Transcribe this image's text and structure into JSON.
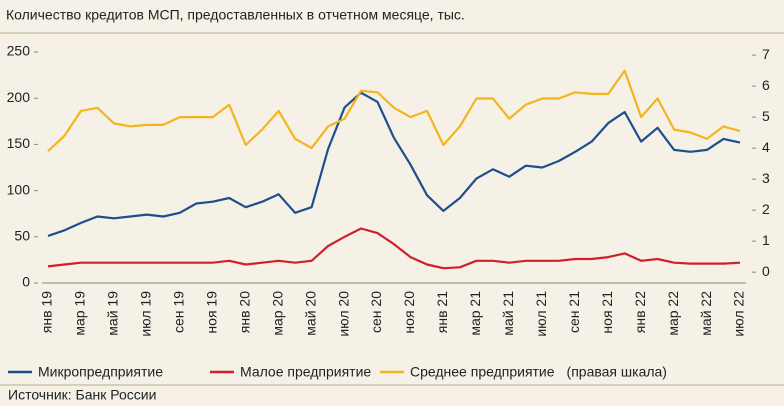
{
  "chart_data": {
    "type": "line",
    "title": "Количество кредитов МСП, предоставленных в отчетном месяце, тыс.",
    "source": "Источник: Банк России",
    "y2_note": "(правая шкала)",
    "categories": [
      "янв 19",
      null,
      "мар 19",
      null,
      "май 19",
      null,
      "июл 19",
      null,
      "сен 19",
      null,
      "ноя 19",
      null,
      "янв 20",
      null,
      "мар 20",
      null,
      "май 20",
      null,
      "июл 20",
      null,
      "сен 20",
      null,
      "ноя 20",
      null,
      "янв 21",
      null,
      "мар 21",
      null,
      "май 21",
      null,
      "июл 21",
      null,
      "сен 21",
      null,
      "ноя 21",
      null,
      "янв 22",
      null,
      "мар 22",
      null,
      "май 22",
      null,
      "июл 22"
    ],
    "series": [
      {
        "name": "Микропредприятие",
        "color": "#1f4e8c",
        "values": [
          51,
          57,
          65,
          72,
          70,
          72,
          74,
          72,
          76,
          86,
          88,
          92,
          82,
          88,
          96,
          76,
          82,
          145,
          190,
          206,
          196,
          157,
          128,
          95,
          78,
          92,
          113,
          123,
          115,
          127,
          125,
          132,
          142,
          153,
          173,
          185,
          153,
          168,
          144,
          142,
          144,
          156,
          152
        ]
      },
      {
        "name": "Малое предприятие",
        "color": "#d0202a",
        "values": [
          18,
          20,
          22,
          22,
          22,
          22,
          22,
          22,
          22,
          22,
          22,
          24,
          20,
          22,
          24,
          22,
          24,
          40,
          50,
          59,
          54,
          42,
          28,
          20,
          16,
          17,
          24,
          24,
          22,
          24,
          24,
          24,
          26,
          26,
          28,
          32,
          24,
          26,
          22,
          21,
          21,
          21,
          22
        ]
      },
      {
        "name": "Среднее предприятие",
        "color": "#f2b51c",
        "axis": "y2",
        "values": [
          3.9,
          4.4,
          5.2,
          5.3,
          4.8,
          4.7,
          4.75,
          4.75,
          5.0,
          5.0,
          5.0,
          5.4,
          4.1,
          4.6,
          5.2,
          4.3,
          4.0,
          4.7,
          4.95,
          5.85,
          5.8,
          5.3,
          5.0,
          5.2,
          4.1,
          4.7,
          5.6,
          5.6,
          4.95,
          5.4,
          5.6,
          5.6,
          5.8,
          5.75,
          5.75,
          6.5,
          5.0,
          5.6,
          4.6,
          4.5,
          4.3,
          4.7,
          4.55
        ]
      }
    ],
    "ylim": [
      0,
      250
    ],
    "yticks": [
      0,
      50,
      100,
      150,
      200,
      250
    ],
    "y2lim": [
      -0.35,
      7.1
    ],
    "y2ticks": [
      0,
      1,
      2,
      3,
      4,
      5,
      6,
      7
    ],
    "grid": false
  }
}
